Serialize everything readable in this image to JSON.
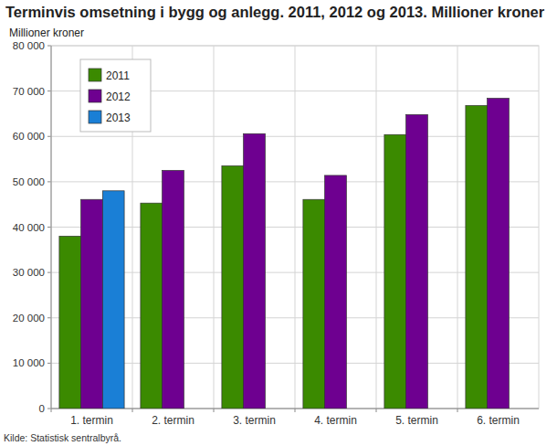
{
  "chart_data": {
    "type": "bar",
    "title": "Terminvis omsetning i bygg og anlegg. 2011, 2012 og 2013. Millioner kroner",
    "y_label": "Millioner kroner",
    "annotations": [
      "Kilde: Statistisk sentralbyrå."
    ],
    "categories": [
      "1. termin",
      "2. termin",
      "3. termin",
      "4. termin",
      "5. termin",
      "6. termin"
    ],
    "series": [
      {
        "name": "2011",
        "color": "#3b8a00",
        "values": [
          38000,
          45300,
          53500,
          46100,
          60400,
          66800
        ]
      },
      {
        "name": "2012",
        "color": "#6e0090",
        "values": [
          46100,
          52500,
          60600,
          51400,
          64800,
          68400
        ]
      },
      {
        "name": "2013",
        "color": "#1a7fd6",
        "values": [
          48000,
          null,
          null,
          null,
          null,
          null
        ]
      }
    ],
    "ylim": [
      0,
      80000
    ],
    "yticks": [
      0,
      {
        "value": 10000,
        "label": "10 000"
      },
      {
        "value": 20000,
        "label": "20 000"
      },
      {
        "value": 30000,
        "label": "30 000"
      },
      {
        "value": 40000,
        "label": "40 000"
      },
      {
        "value": 50000,
        "label": "50 000"
      },
      {
        "value": 60000,
        "label": "60 000"
      },
      {
        "value": 70000,
        "label": "70 000"
      },
      {
        "value": 80000,
        "label": "80 000"
      }
    ],
    "grid": true,
    "legend": "upper left"
  }
}
